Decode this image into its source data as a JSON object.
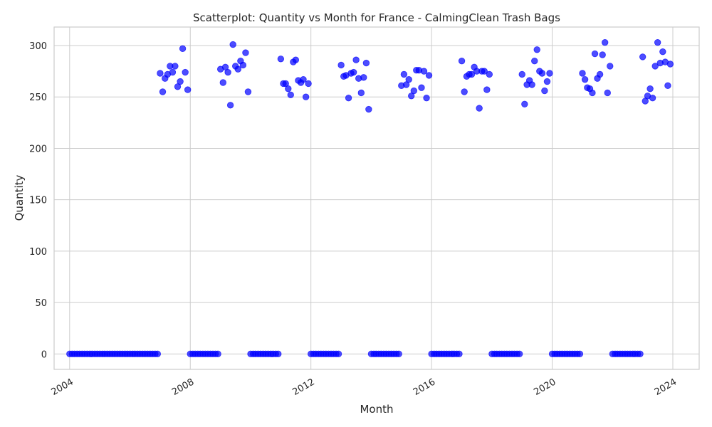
{
  "chart_data": {
    "type": "scatter",
    "title": "Scatterplot: Quantity vs Month for France - CalmingClean Trash Bags",
    "xlabel": "Month",
    "ylabel": "Quantity",
    "x_ticks": [
      "2004",
      "2008",
      "2012",
      "2016",
      "2020",
      "2024"
    ],
    "y_ticks": [
      0,
      50,
      100,
      150,
      200,
      250,
      300
    ],
    "xlim": [
      "2003-06-27",
      "2024-11-15"
    ],
    "ylim": [
      -15,
      318
    ],
    "grid": true,
    "marker_color": "#0000ff",
    "active_months": [
      [
        2007,
        [
          273,
          255,
          268,
          272,
          280,
          274,
          280,
          260,
          265,
          297,
          274,
          257
        ]
      ],
      [
        2009,
        [
          277,
          264,
          279,
          274,
          242,
          301,
          280,
          277,
          285,
          281,
          293,
          255
        ]
      ],
      [
        2011,
        [
          287,
          263,
          263,
          258,
          252,
          284,
          286,
          266,
          264,
          267,
          250,
          263
        ]
      ],
      [
        2013,
        [
          281,
          270,
          271,
          249,
          273,
          274,
          286,
          268,
          254,
          269,
          283,
          238
        ]
      ],
      [
        2015,
        [
          261,
          272,
          262,
          267,
          251,
          256,
          276,
          276,
          259,
          275,
          249,
          271
        ]
      ],
      [
        2017,
        [
          285,
          255,
          270,
          272,
          272,
          279,
          275,
          239,
          275,
          275,
          257,
          272
        ]
      ],
      [
        2019,
        [
          272,
          243,
          262,
          266,
          262,
          285,
          296,
          275,
          273,
          256,
          265,
          273
        ]
      ],
      [
        2021,
        [
          273,
          267,
          259,
          258,
          254,
          292,
          268,
          272,
          291,
          303,
          254,
          280
        ]
      ],
      [
        2023,
        [
          289,
          246,
          251,
          258,
          249,
          280,
          303,
          283,
          294,
          284,
          261,
          282
        ]
      ]
    ],
    "zero_years": [
      2004,
      2005,
      2006,
      2008,
      2010,
      2012,
      2014,
      2016,
      2018,
      2020,
      2022
    ]
  }
}
